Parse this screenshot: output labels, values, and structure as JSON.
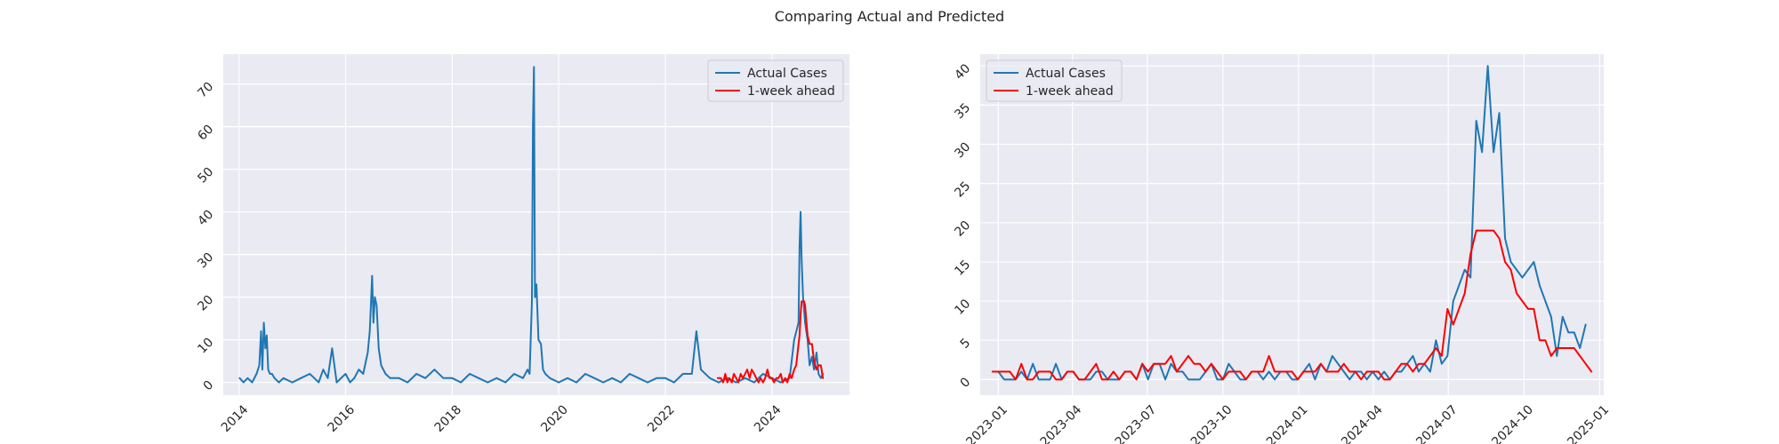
{
  "figure": {
    "title": "Comparing Actual and Predicted"
  },
  "colors": {
    "actual": "#1f77b4",
    "predicted": "#ff0000",
    "axes_bg": "#eaeaf2",
    "grid": "#ffffff"
  },
  "chart_data": [
    {
      "type": "line",
      "title": "",
      "xlabel": "",
      "ylabel": "",
      "grid": true,
      "legend_position": "top-right",
      "xlim": [
        "2013-09-15",
        "2025-06-15"
      ],
      "ylim": [
        -3,
        77
      ],
      "xticks": [
        {
          "label": "2014",
          "date": "2014-01-01"
        },
        {
          "label": "2016",
          "date": "2016-01-01"
        },
        {
          "label": "2018",
          "date": "2018-01-01"
        },
        {
          "label": "2020",
          "date": "2020-01-01"
        },
        {
          "label": "2022",
          "date": "2022-01-01"
        },
        {
          "label": "2024",
          "date": "2024-01-01"
        }
      ],
      "yticks": [
        0,
        10,
        20,
        30,
        40,
        50,
        60,
        70
      ],
      "series": [
        {
          "name": "Actual Cases",
          "color_key": "actual",
          "x": [
            "2014-01-05",
            "2014-02-01",
            "2014-03-01",
            "2014-04-01",
            "2014-05-01",
            "2014-05-20",
            "2014-06-01",
            "2014-06-10",
            "2014-06-20",
            "2014-07-01",
            "2014-07-10",
            "2014-07-20",
            "2014-08-01",
            "2014-08-15",
            "2014-09-01",
            "2014-10-01",
            "2014-11-01",
            "2015-01-01",
            "2015-03-01",
            "2015-05-01",
            "2015-06-01",
            "2015-07-01",
            "2015-08-01",
            "2015-09-01",
            "2015-10-01",
            "2015-11-01",
            "2016-01-01",
            "2016-02-01",
            "2016-03-01",
            "2016-04-01",
            "2016-05-01",
            "2016-06-01",
            "2016-06-15",
            "2016-07-01",
            "2016-07-10",
            "2016-07-20",
            "2016-08-01",
            "2016-08-15",
            "2016-09-01",
            "2016-10-01",
            "2016-11-01",
            "2017-01-01",
            "2017-03-01",
            "2017-05-01",
            "2017-07-01",
            "2017-09-01",
            "2017-11-01",
            "2018-01-01",
            "2018-03-01",
            "2018-05-01",
            "2018-07-01",
            "2018-09-01",
            "2018-11-01",
            "2019-01-01",
            "2019-03-01",
            "2019-05-01",
            "2019-06-01",
            "2019-06-15",
            "2019-07-01",
            "2019-07-08",
            "2019-07-15",
            "2019-07-22",
            "2019-08-01",
            "2019-08-15",
            "2019-09-01",
            "2019-09-15",
            "2019-10-01",
            "2019-11-01",
            "2020-01-01",
            "2020-03-01",
            "2020-05-01",
            "2020-07-01",
            "2020-09-01",
            "2020-11-01",
            "2021-01-01",
            "2021-03-01",
            "2021-05-01",
            "2021-07-01",
            "2021-09-01",
            "2021-11-01",
            "2022-01-01",
            "2022-03-01",
            "2022-05-01",
            "2022-07-01",
            "2022-08-01",
            "2022-09-01",
            "2022-11-01",
            "2023-01-01",
            "2023-03-01",
            "2023-05-01",
            "2023-07-01",
            "2023-09-01",
            "2023-11-01",
            "2024-01-01",
            "2024-03-01",
            "2024-05-01",
            "2024-06-01",
            "2024-07-01",
            "2024-07-08",
            "2024-07-15",
            "2024-07-22",
            "2024-08-01",
            "2024-08-15",
            "2024-09-01",
            "2024-09-15",
            "2024-10-01",
            "2024-10-15",
            "2024-11-01",
            "2024-11-15",
            "2024-12-01",
            "2024-12-15"
          ],
          "y": [
            1,
            0,
            1,
            0,
            2,
            4,
            12,
            3,
            14,
            8,
            11,
            3,
            2,
            2,
            1,
            0,
            1,
            0,
            1,
            2,
            1,
            0,
            3,
            1,
            8,
            0,
            2,
            0,
            1,
            3,
            2,
            7,
            12,
            25,
            14,
            20,
            18,
            8,
            4,
            2,
            1,
            1,
            0,
            2,
            1,
            3,
            1,
            1,
            0,
            2,
            1,
            0,
            1,
            0,
            2,
            1,
            3,
            2,
            19,
            60,
            74,
            20,
            23,
            10,
            9,
            3,
            2,
            1,
            0,
            1,
            0,
            2,
            1,
            0,
            1,
            0,
            2,
            1,
            0,
            1,
            1,
            0,
            2,
            2,
            12,
            3,
            1,
            0,
            1,
            0,
            1,
            0,
            2,
            1,
            0,
            1,
            10,
            14,
            32,
            40,
            29,
            20,
            14,
            10,
            4,
            6,
            3,
            7,
            2,
            1,
            2
          ]
        },
        {
          "name": "1-week ahead",
          "color_key": "predicted",
          "x": [
            "2022-12-25",
            "2023-01-15",
            "2023-02-01",
            "2023-02-15",
            "2023-03-01",
            "2023-03-15",
            "2023-04-01",
            "2023-04-15",
            "2023-05-01",
            "2023-05-15",
            "2023-06-01",
            "2023-06-15",
            "2023-07-01",
            "2023-07-15",
            "2023-08-01",
            "2023-08-15",
            "2023-09-01",
            "2023-09-15",
            "2023-10-01",
            "2023-10-15",
            "2023-11-01",
            "2023-11-15",
            "2023-12-01",
            "2023-12-15",
            "2024-01-01",
            "2024-01-15",
            "2024-02-01",
            "2024-02-15",
            "2024-03-01",
            "2024-03-15",
            "2024-04-01",
            "2024-04-15",
            "2024-05-01",
            "2024-05-15",
            "2024-06-01",
            "2024-06-15",
            "2024-07-01",
            "2024-07-08",
            "2024-07-15",
            "2024-07-22",
            "2024-08-01",
            "2024-08-08",
            "2024-08-15",
            "2024-08-22",
            "2024-09-01",
            "2024-09-15",
            "2024-10-01",
            "2024-10-15",
            "2024-11-01",
            "2024-11-15",
            "2024-12-01",
            "2024-12-15"
          ],
          "y": [
            1,
            1,
            0,
            2,
            0,
            1,
            0,
            2,
            1,
            0,
            2,
            1,
            2,
            3,
            1,
            3,
            2,
            1,
            0,
            1,
            0,
            1,
            3,
            1,
            1,
            0,
            1,
            1,
            2,
            0,
            1,
            0,
            2,
            1,
            3,
            4,
            9,
            11,
            16,
            19,
            19,
            19,
            18,
            15,
            11,
            9,
            9,
            5,
            3,
            4,
            4,
            1
          ]
        }
      ]
    },
    {
      "type": "line",
      "title": "",
      "xlabel": "",
      "ylabel": "",
      "grid": true,
      "legend_position": "top-left",
      "xlim": [
        "2022-12-10",
        "2025-01-06"
      ],
      "ylim": [
        -2,
        41.5
      ],
      "xticks": [
        {
          "label": "2023-01",
          "date": "2023-01-01"
        },
        {
          "label": "2023-04",
          "date": "2023-04-01"
        },
        {
          "label": "2023-07",
          "date": "2023-07-01"
        },
        {
          "label": "2023-10",
          "date": "2023-10-01"
        },
        {
          "label": "2024-01",
          "date": "2024-01-01"
        },
        {
          "label": "2024-04",
          "date": "2024-04-01"
        },
        {
          "label": "2024-07",
          "date": "2024-07-01"
        },
        {
          "label": "2024-10",
          "date": "2024-10-01"
        },
        {
          "label": "2025-01",
          "date": "2025-01-01"
        }
      ],
      "yticks": [
        0,
        5,
        10,
        15,
        20,
        25,
        30,
        35,
        40
      ],
      "series": [
        {
          "name": "Actual Cases",
          "color_key": "actual",
          "x": [
            "2022-12-25",
            "2023-01-01",
            "2023-01-08",
            "2023-01-15",
            "2023-01-22",
            "2023-01-29",
            "2023-02-05",
            "2023-02-12",
            "2023-02-19",
            "2023-02-26",
            "2023-03-05",
            "2023-03-12",
            "2023-03-19",
            "2023-03-26",
            "2023-04-02",
            "2023-04-09",
            "2023-04-16",
            "2023-04-23",
            "2023-04-30",
            "2023-05-07",
            "2023-05-14",
            "2023-05-21",
            "2023-05-28",
            "2023-06-04",
            "2023-06-11",
            "2023-06-18",
            "2023-06-25",
            "2023-07-02",
            "2023-07-09",
            "2023-07-16",
            "2023-07-23",
            "2023-07-30",
            "2023-08-06",
            "2023-08-13",
            "2023-08-20",
            "2023-08-27",
            "2023-09-03",
            "2023-09-10",
            "2023-09-17",
            "2023-09-24",
            "2023-10-01",
            "2023-10-08",
            "2023-10-15",
            "2023-10-22",
            "2023-10-29",
            "2023-11-05",
            "2023-11-12",
            "2023-11-19",
            "2023-11-26",
            "2023-12-03",
            "2023-12-10",
            "2023-12-17",
            "2023-12-24",
            "2023-12-31",
            "2024-01-07",
            "2024-01-14",
            "2024-01-21",
            "2024-01-28",
            "2024-02-04",
            "2024-02-11",
            "2024-02-18",
            "2024-02-25",
            "2024-03-03",
            "2024-03-10",
            "2024-03-17",
            "2024-03-24",
            "2024-03-31",
            "2024-04-07",
            "2024-04-14",
            "2024-04-21",
            "2024-04-28",
            "2024-05-05",
            "2024-05-12",
            "2024-05-19",
            "2024-05-26",
            "2024-06-02",
            "2024-06-09",
            "2024-06-16",
            "2024-06-23",
            "2024-06-30",
            "2024-07-07",
            "2024-07-14",
            "2024-07-21",
            "2024-07-28",
            "2024-08-04",
            "2024-08-11",
            "2024-08-18",
            "2024-08-25",
            "2024-09-01",
            "2024-09-08",
            "2024-09-15",
            "2024-09-22",
            "2024-09-29",
            "2024-10-06",
            "2024-10-13",
            "2024-10-20",
            "2024-10-27",
            "2024-11-03",
            "2024-11-10",
            "2024-11-17",
            "2024-11-24",
            "2024-12-01",
            "2024-12-08",
            "2024-12-15"
          ],
          "y": [
            1,
            1,
            0,
            0,
            0,
            1,
            0,
            2,
            0,
            0,
            0,
            2,
            0,
            1,
            1,
            0,
            0,
            0,
            1,
            1,
            0,
            0,
            0,
            1,
            1,
            0,
            2,
            0,
            2,
            2,
            0,
            2,
            1,
            1,
            0,
            0,
            0,
            1,
            2,
            0,
            0,
            2,
            1,
            0,
            0,
            1,
            1,
            0,
            1,
            0,
            1,
            1,
            0,
            0,
            1,
            2,
            0,
            2,
            1,
            3,
            2,
            1,
            0,
            1,
            1,
            0,
            1,
            0,
            1,
            0,
            1,
            1,
            2,
            3,
            1,
            2,
            1,
            5,
            2,
            3,
            10,
            12,
            14,
            13,
            33,
            29,
            40,
            29,
            34,
            18,
            15,
            14,
            13,
            14,
            15,
            12,
            10,
            8,
            3,
            8,
            6,
            6,
            4,
            7
          ]
        },
        {
          "name": "1-week ahead",
          "color_key": "predicted",
          "x": [
            "2022-12-25",
            "2023-01-01",
            "2023-01-08",
            "2023-01-15",
            "2023-01-22",
            "2023-01-29",
            "2023-02-05",
            "2023-02-12",
            "2023-02-19",
            "2023-02-26",
            "2023-03-05",
            "2023-03-12",
            "2023-03-19",
            "2023-03-26",
            "2023-04-02",
            "2023-04-09",
            "2023-04-16",
            "2023-04-23",
            "2023-04-30",
            "2023-05-07",
            "2023-05-14",
            "2023-05-21",
            "2023-05-28",
            "2023-06-04",
            "2023-06-11",
            "2023-06-18",
            "2023-06-25",
            "2023-07-02",
            "2023-07-09",
            "2023-07-16",
            "2023-07-23",
            "2023-07-30",
            "2023-08-06",
            "2023-08-13",
            "2023-08-20",
            "2023-08-27",
            "2023-09-03",
            "2023-09-10",
            "2023-09-17",
            "2023-09-24",
            "2023-10-01",
            "2023-10-08",
            "2023-10-15",
            "2023-10-22",
            "2023-10-29",
            "2023-11-05",
            "2023-11-12",
            "2023-11-19",
            "2023-11-26",
            "2023-12-03",
            "2023-12-10",
            "2023-12-17",
            "2023-12-24",
            "2023-12-31",
            "2024-01-07",
            "2024-01-14",
            "2024-01-21",
            "2024-01-28",
            "2024-02-04",
            "2024-02-11",
            "2024-02-18",
            "2024-02-25",
            "2024-03-03",
            "2024-03-10",
            "2024-03-17",
            "2024-03-24",
            "2024-03-31",
            "2024-04-07",
            "2024-04-14",
            "2024-04-21",
            "2024-04-28",
            "2024-05-05",
            "2024-05-12",
            "2024-05-19",
            "2024-05-26",
            "2024-06-02",
            "2024-06-09",
            "2024-06-16",
            "2024-06-23",
            "2024-06-30",
            "2024-07-07",
            "2024-07-14",
            "2024-07-21",
            "2024-07-28",
            "2024-08-04",
            "2024-08-11",
            "2024-08-18",
            "2024-08-25",
            "2024-09-01",
            "2024-09-08",
            "2024-09-15",
            "2024-09-22",
            "2024-09-29",
            "2024-10-06",
            "2024-10-13",
            "2024-10-20",
            "2024-10-27",
            "2024-11-03",
            "2024-11-10",
            "2024-11-17",
            "2024-11-24",
            "2024-12-01",
            "2024-12-08",
            "2024-12-15",
            "2024-12-22"
          ],
          "y": [
            1,
            1,
            1,
            1,
            0,
            2,
            0,
            0,
            1,
            1,
            1,
            0,
            0,
            1,
            1,
            0,
            0,
            1,
            2,
            0,
            0,
            1,
            0,
            1,
            1,
            0,
            2,
            1,
            2,
            2,
            2,
            3,
            1,
            2,
            3,
            2,
            2,
            1,
            2,
            1,
            0,
            1,
            1,
            1,
            0,
            1,
            1,
            1,
            3,
            1,
            1,
            1,
            1,
            0,
            1,
            1,
            1,
            2,
            1,
            1,
            1,
            2,
            1,
            1,
            0,
            1,
            1,
            1,
            0,
            0,
            1,
            2,
            2,
            1,
            2,
            2,
            3,
            4,
            3,
            9,
            7,
            9,
            11,
            16,
            19,
            19,
            19,
            19,
            18,
            15,
            14,
            11,
            10,
            9,
            9,
            5,
            5,
            3,
            4,
            4,
            4,
            4,
            3,
            2,
            1
          ]
        }
      ]
    }
  ]
}
